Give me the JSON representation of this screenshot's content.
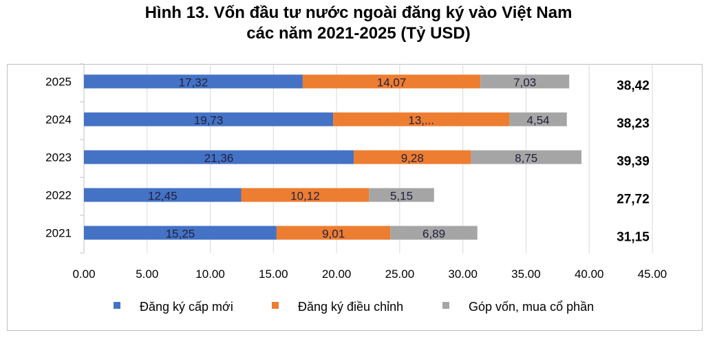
{
  "chart_data": {
    "type": "bar",
    "orientation": "horizontal",
    "stacked": true,
    "title_line1": "Hình 13. Vốn đầu tư nước ngoài đăng ký vào Việt Nam",
    "title_line2": "các năm 2021-2025 (Tỷ USD)",
    "categories": [
      "2025",
      "2024",
      "2023",
      "2022",
      "2021"
    ],
    "series": [
      {
        "name": "Đăng ký cấp mới",
        "color": "#4472c4",
        "values": [
          17.32,
          19.73,
          21.36,
          12.45,
          15.25
        ],
        "labels": [
          "17,32",
          "19,73",
          "21,36",
          "12,45",
          "15,25"
        ]
      },
      {
        "name": "Đăng ký điều chỉnh",
        "color": "#ed7d31",
        "values": [
          14.07,
          13.96,
          9.28,
          10.12,
          9.01
        ],
        "labels": [
          "14,07",
          "13,...",
          "9,28",
          "10,12",
          "9,01"
        ]
      },
      {
        "name": "Góp vốn, mua cổ phần",
        "color": "#a5a5a5",
        "values": [
          7.03,
          4.54,
          8.75,
          5.15,
          6.89
        ],
        "labels": [
          "7,03",
          "4,54",
          "8,75",
          "5,15",
          "6,89"
        ]
      }
    ],
    "totals": [
      "38,42",
      "38,23",
      "39,39",
      "27,72",
      "31,15"
    ],
    "xlim": [
      0,
      45
    ],
    "xticks": [
      "0.00",
      "5.00",
      "10.00",
      "15.00",
      "20.00",
      "25.00",
      "30.00",
      "35.00",
      "40.00",
      "45.00"
    ],
    "grid": true,
    "legend": "bottom"
  }
}
